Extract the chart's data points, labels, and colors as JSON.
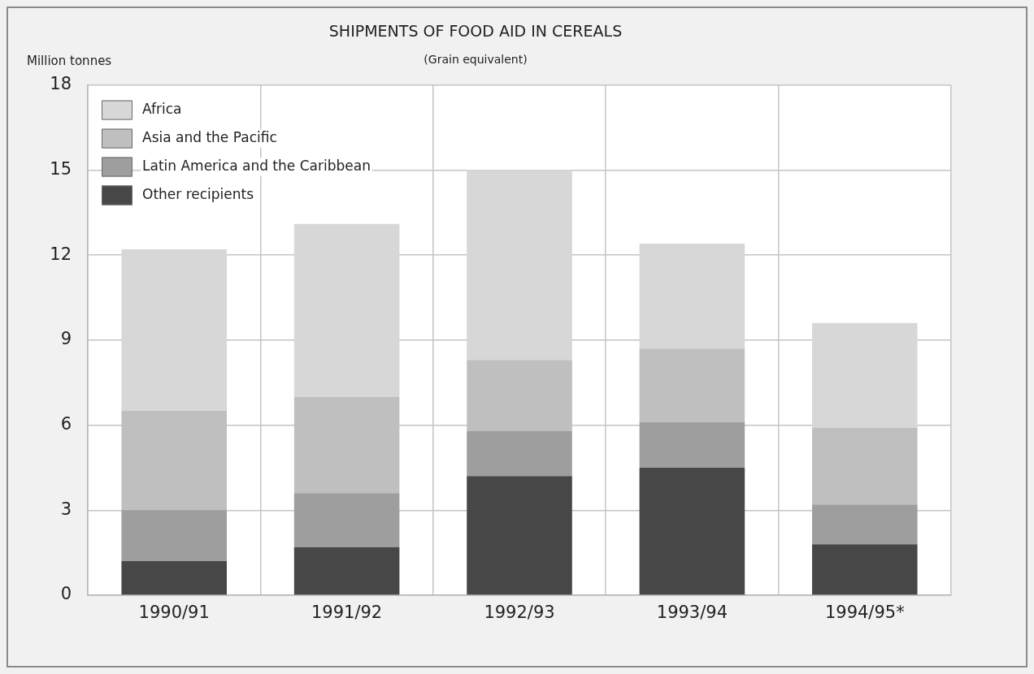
{
  "chart_data": {
    "type": "bar",
    "title": "SHIPMENTS OF FOOD AID IN CEREALS",
    "subtitle": "(Grain equivalent)",
    "ylabel": "Million tonnes",
    "categories": [
      "1990/91",
      "1991/92",
      "1992/93",
      "1993/94",
      "1994/95*"
    ],
    "series": [
      {
        "name": "Other recipients",
        "color": "#474747",
        "values": [
          1.2,
          1.7,
          4.2,
          4.5,
          1.8
        ]
      },
      {
        "name": "Latin America and the Caribbean",
        "color": "#9e9e9e",
        "values": [
          1.8,
          1.9,
          1.6,
          1.6,
          1.4
        ]
      },
      {
        "name": "Asia and the Pacific",
        "color": "#bfbfbf",
        "values": [
          3.5,
          3.4,
          2.5,
          2.6,
          2.7
        ]
      },
      {
        "name": "Africa",
        "color": "#d7d7d7",
        "values": [
          5.7,
          6.1,
          6.7,
          3.7,
          3.7
        ]
      }
    ],
    "stacked": true,
    "ylim": [
      0,
      18
    ],
    "yticks": [
      0,
      3,
      6,
      9,
      12,
      15,
      18
    ],
    "grid": true,
    "legend": "top left"
  }
}
